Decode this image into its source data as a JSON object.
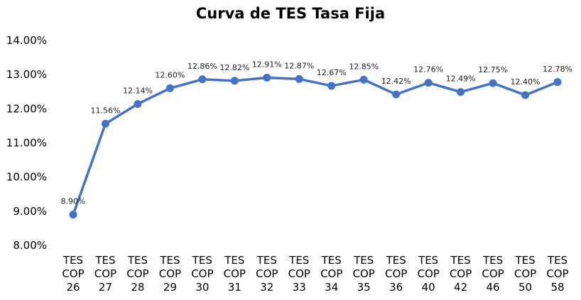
{
  "chart_data": {
    "type": "line",
    "title": "Curva de TES Tasa Fija",
    "xlabel": "",
    "ylabel": "",
    "ylim": [
      8.0,
      14.0
    ],
    "yticks": [
      "8.00%",
      "9.00%",
      "10.00%",
      "11.00%",
      "12.00%",
      "13.00%",
      "14.00%"
    ],
    "grid": false,
    "legend": "none",
    "line_color": "#4472C4",
    "categories": [
      "TES COP 26",
      "TES COP 27",
      "TES COP 28",
      "TES COP 29",
      "TES COP 30",
      "TES COP 31",
      "TES COP 32",
      "TES COP 33",
      "TES COP 34",
      "TES COP 35",
      "TES COP 36",
      "TES COP 40",
      "TES COP 42",
      "TES COP 46",
      "TES COP 50",
      "TES COP 58"
    ],
    "series": [
      {
        "name": "TES Tasa Fija",
        "values": [
          8.9,
          11.56,
          12.14,
          12.6,
          12.86,
          12.82,
          12.91,
          12.87,
          12.67,
          12.85,
          12.42,
          12.76,
          12.49,
          12.75,
          12.4,
          12.78
        ]
      }
    ],
    "data_labels": [
      "8.90%",
      "11.56%",
      "12.14%",
      "12.60%",
      "12.86%",
      "12.82%",
      "12.91%",
      "12.87%",
      "12.67%",
      "12.85%",
      "12.42%",
      "12.76%",
      "12.49%",
      "12.75%",
      "12.40%",
      "12.78%"
    ]
  }
}
